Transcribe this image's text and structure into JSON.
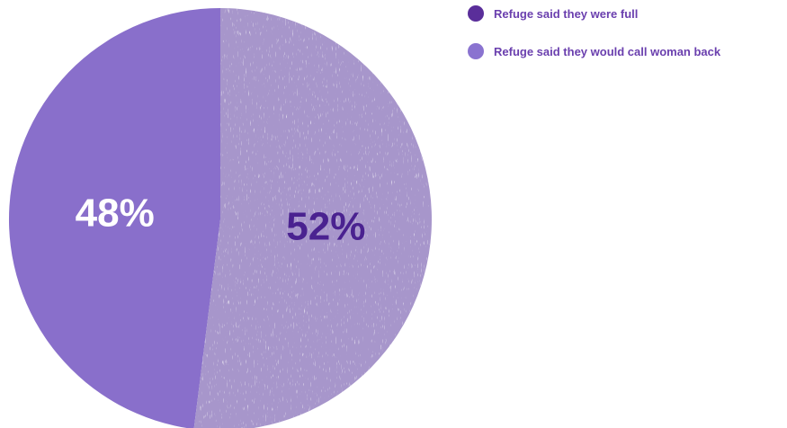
{
  "chart_data": {
    "type": "pie",
    "slices": [
      {
        "label": "Refuge said they were full",
        "value": 48,
        "value_label": "48%",
        "color": "#896fcb",
        "text_color": "#ffffff",
        "legend_color": "#5a2e9a"
      },
      {
        "label": "Refuge said they would call woman back",
        "value": 52,
        "value_label": "52%",
        "color": "#a796cb",
        "text_color": "#4a2290",
        "legend_color": "#8a73d0"
      }
    ],
    "legend_position": "top-right",
    "start_angle_deg": 0,
    "direction": "counterclockwise"
  }
}
